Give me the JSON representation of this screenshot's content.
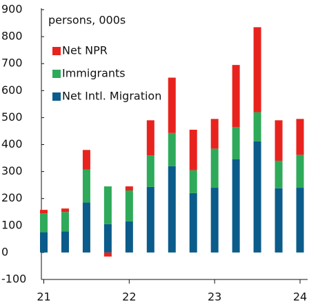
{
  "chart_data": {
    "type": "bar",
    "stacked": true,
    "annotation": "persons, 000s",
    "categories": [
      "21",
      null,
      null,
      null,
      "22",
      null,
      null,
      null,
      "23",
      null,
      null,
      null,
      "24"
    ],
    "series": [
      {
        "name": "Net Intl. Migration",
        "color": "#0b5c8a",
        "values": [
          75,
          78,
          185,
          105,
          115,
          243,
          320,
          220,
          240,
          345,
          412,
          238,
          240
        ]
      },
      {
        "name": "Immigrants",
        "color": "#2eaa5a",
        "values": [
          70,
          72,
          123,
          140,
          115,
          117,
          123,
          85,
          145,
          120,
          108,
          102,
          122
        ]
      },
      {
        "name": "Net NPR",
        "color": "#e8231e",
        "values": [
          13,
          13,
          72,
          -15,
          15,
          130,
          205,
          150,
          110,
          230,
          315,
          150,
          133
        ]
      }
    ],
    "ylim": [
      -100,
      900
    ],
    "yticks": [
      -100,
      0,
      100,
      200,
      300,
      400,
      500,
      600,
      700,
      800,
      900
    ]
  }
}
